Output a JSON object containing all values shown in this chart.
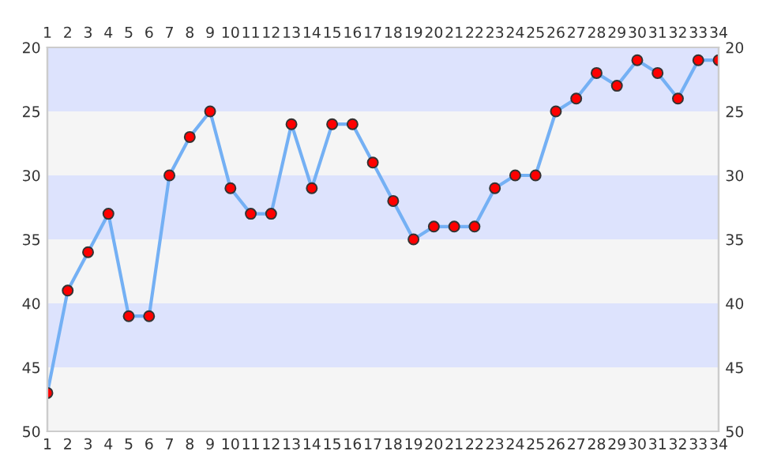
{
  "chart_data": {
    "type": "line",
    "categories": [
      "1",
      "2",
      "3",
      "4",
      "5",
      "6",
      "7",
      "8",
      "9",
      "10",
      "11",
      "12",
      "13",
      "14",
      "15",
      "16",
      "17",
      "18",
      "19",
      "20",
      "21",
      "22",
      "23",
      "24",
      "25",
      "26",
      "27",
      "28",
      "29",
      "30",
      "31",
      "32",
      "33",
      "34"
    ],
    "series": [
      {
        "color": "#74b0f4",
        "colors": [
          "#ff0000",
          "#ff0000",
          "#ff0000",
          "#ff0000",
          "#ff0000",
          "#ff0000",
          "#ff0000",
          "#ff0000",
          "#ff0000",
          "#ff0000",
          "#ff0000",
          "#ff0000",
          "#ff0000",
          "#ff0000",
          "#ff0000",
          "#ff0000",
          "#ff0000",
          "#ff0000",
          "#ff0000",
          "#ff0000",
          "#ff0000",
          "#ff0000",
          "#ff0000",
          "#ff0000",
          "#ff0000",
          "#ff0000",
          "#ff0000",
          "#ff0000",
          "#ff0000",
          "#ff0000",
          "#ff0000",
          "#ff0000",
          "#ff0000",
          "#ff0000"
        ],
        "values": [
          47,
          39,
          36,
          33,
          41,
          41,
          30,
          27,
          25,
          31,
          33,
          33,
          26,
          31,
          26,
          26,
          29,
          32,
          35,
          34,
          34,
          34,
          31,
          30,
          30,
          25,
          24,
          22,
          23,
          21,
          22,
          24,
          21,
          21
        ]
      }
    ],
    "ylim": [
      50,
      20
    ],
    "yticks": [
      20,
      25,
      30,
      35,
      40,
      45,
      50
    ],
    "y2lim": [
      50,
      20
    ],
    "y2ticks": [
      20,
      25,
      30,
      35,
      40,
      45,
      50
    ],
    "marker": "circle",
    "line_style": "solid",
    "grid": false,
    "bands": [
      {
        "axis": "y",
        "from": 20,
        "to": 25,
        "color": "#dde3fd"
      },
      {
        "axis": "y",
        "from": 25,
        "to": 30,
        "color": "#f5f5f5"
      },
      {
        "axis": "y",
        "from": 30,
        "to": 35,
        "color": "#dde3fd"
      },
      {
        "axis": "y",
        "from": 35,
        "to": 40,
        "color": "#f5f5f5"
      },
      {
        "axis": "y",
        "from": 40,
        "to": 45,
        "color": "#dde3fd"
      },
      {
        "axis": "y",
        "from": 45,
        "to": 50,
        "color": "#f5f5f5"
      }
    ]
  }
}
